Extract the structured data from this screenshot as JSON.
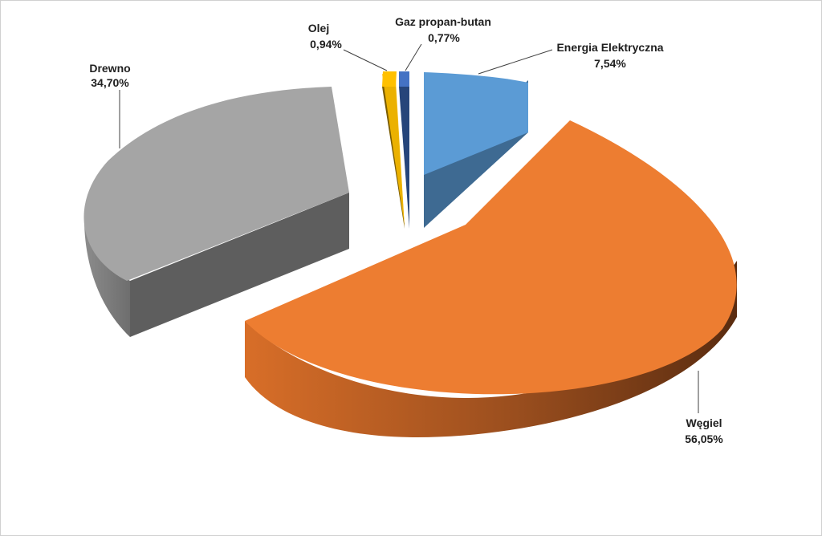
{
  "chart_data": {
    "type": "pie",
    "three_d": true,
    "exploded": true,
    "legend": "none",
    "slices": [
      {
        "name": "Węgiel",
        "value": 56.05,
        "label": "56,05%",
        "color": "#ED7D31",
        "side_color": "#8A4418"
      },
      {
        "name": "Drewno",
        "value": 34.7,
        "label": "34,70%",
        "color": "#A5A5A5",
        "side_color": "#5E5E5E"
      },
      {
        "name": "Olej",
        "value": 0.94,
        "label": "0,94%",
        "color": "#FFC000",
        "side_color": "#7A5C00"
      },
      {
        "name": "Gaz propan-butan",
        "value": 0.77,
        "label": "0,77%",
        "color": "#4472C4",
        "side_color": "#26457A"
      },
      {
        "name": "Energia Elektryczna",
        "value": 7.54,
        "label": "7,54%",
        "color": "#5B9BD5",
        "side_color": "#3B6690"
      }
    ]
  }
}
